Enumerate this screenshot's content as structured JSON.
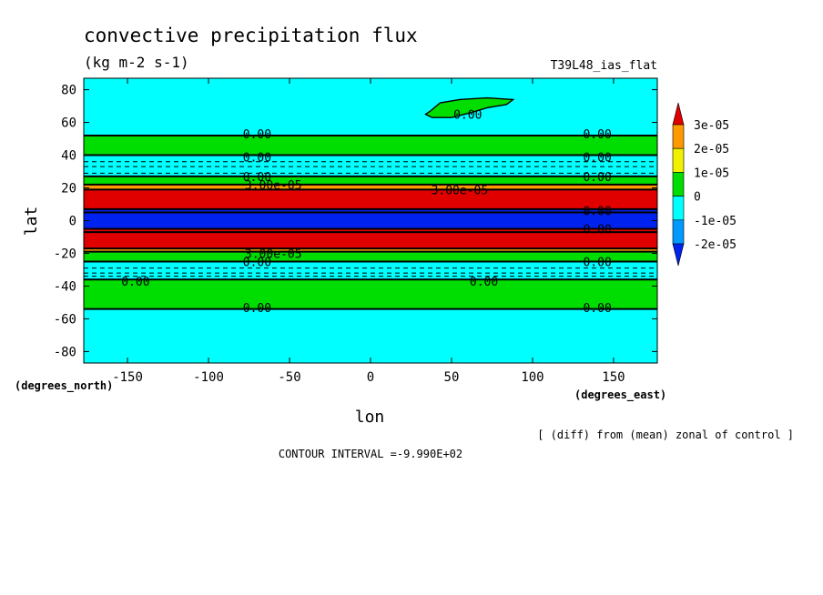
{
  "chart_data": {
    "type": "heatmap",
    "title": "convective precipitation flux",
    "subtitle": "(kg m-2 s-1)",
    "run_label": "T39L48_ias_flat",
    "xlabel": "lon",
    "ylabel": "lat",
    "x_unit": "(degrees_east)",
    "y_unit": "(degrees_north)",
    "xlim": [
      -177,
      177
    ],
    "ylim": [
      -87,
      87
    ],
    "x_ticks": [
      -150,
      -100,
      -50,
      0,
      50,
      100,
      150
    ],
    "y_ticks": [
      -80,
      -60,
      -40,
      -20,
      0,
      20,
      40,
      60,
      80
    ],
    "x_tick_labels": [
      "-150",
      "-100",
      "-50",
      "0",
      "50",
      "100",
      "150"
    ],
    "y_tick_labels": [
      "-80",
      "-60",
      "-40",
      "-20",
      "0",
      "20",
      "40",
      "60",
      "80"
    ],
    "legend": {
      "placement": "right",
      "labels": [
        "3e-05",
        "2e-05",
        "1e-05",
        "0",
        "-1e-05",
        "-2e-05"
      ],
      "colors": [
        "#e00000",
        "#ff9900",
        "#f0f000",
        "#00dd00",
        "#00ffff",
        "#0099ff",
        "#0022ee"
      ]
    },
    "zonal_bands": [
      {
        "lat_from": 52,
        "lat_to": 87,
        "color": "#00ffff"
      },
      {
        "lat_from": 40,
        "lat_to": 52,
        "color": "#00dd00"
      },
      {
        "lat_from": 27,
        "lat_to": 40,
        "color": "#00ffff"
      },
      {
        "lat_from": 22,
        "lat_to": 27,
        "color": "#00dd00"
      },
      {
        "lat_from": 19,
        "lat_to": 22,
        "color": "#ff9900"
      },
      {
        "lat_from": 7,
        "lat_to": 19,
        "color": "#e00000"
      },
      {
        "lat_from": -5,
        "lat_to": 7,
        "color": "#0022ee"
      },
      {
        "lat_from": -17,
        "lat_to": -5,
        "color": "#e00000"
      },
      {
        "lat_from": -19,
        "lat_to": -17,
        "color": "#ff9900"
      },
      {
        "lat_from": -25,
        "lat_to": -19,
        "color": "#00dd00"
      },
      {
        "lat_from": -36,
        "lat_to": -25,
        "color": "#00ffff"
      },
      {
        "lat_from": -54,
        "lat_to": -36,
        "color": "#00dd00"
      },
      {
        "lat_from": -87,
        "lat_to": -54,
        "color": "#00ffff"
      }
    ],
    "contour_lines_lat": [
      52,
      40,
      27,
      22,
      19,
      7,
      5,
      -5,
      -7,
      -17,
      -19,
      -25,
      -36,
      -54
    ],
    "dashed_lines_lat": [
      36,
      33,
      29,
      -29,
      -32,
      -34
    ],
    "contour_labels": [
      {
        "text": "0.00",
        "lon": -70,
        "lat": 53
      },
      {
        "text": "0.00",
        "lon": 140,
        "lat": 53
      },
      {
        "text": "0.00",
        "lon": -70,
        "lat": 39
      },
      {
        "text": "0.00",
        "lon": 140,
        "lat": 39
      },
      {
        "text": "0.00",
        "lon": -70,
        "lat": 27
      },
      {
        "text": "0.00",
        "lon": 140,
        "lat": 27
      },
      {
        "text": "3.00e-05",
        "lon": -60,
        "lat": 22
      },
      {
        "text": "3.00e-05",
        "lon": 55,
        "lat": 19
      },
      {
        "text": "0.00",
        "lon": 140,
        "lat": 6
      },
      {
        "text": "0.00",
        "lon": 140,
        "lat": -5
      },
      {
        "text": "0.00",
        "lon": 140,
        "lat": -25
      },
      {
        "text": "3.00e-05",
        "lon": -60,
        "lat": -20
      },
      {
        "text": "0.00",
        "lon": -70,
        "lat": -25
      },
      {
        "text": "0.00",
        "lon": -145,
        "lat": -37
      },
      {
        "text": "0.00",
        "lon": 70,
        "lat": -37
      },
      {
        "text": "0.00",
        "lon": -70,
        "lat": -53
      },
      {
        "text": "0.00",
        "lon": 140,
        "lat": -53
      },
      {
        "text": "0.00",
        "lon": 60,
        "lat": 65
      }
    ],
    "note": "[ (diff) from (mean) zonal of control ]",
    "contour_interval": "CONTOUR INTERVAL =-9.990E+02"
  }
}
